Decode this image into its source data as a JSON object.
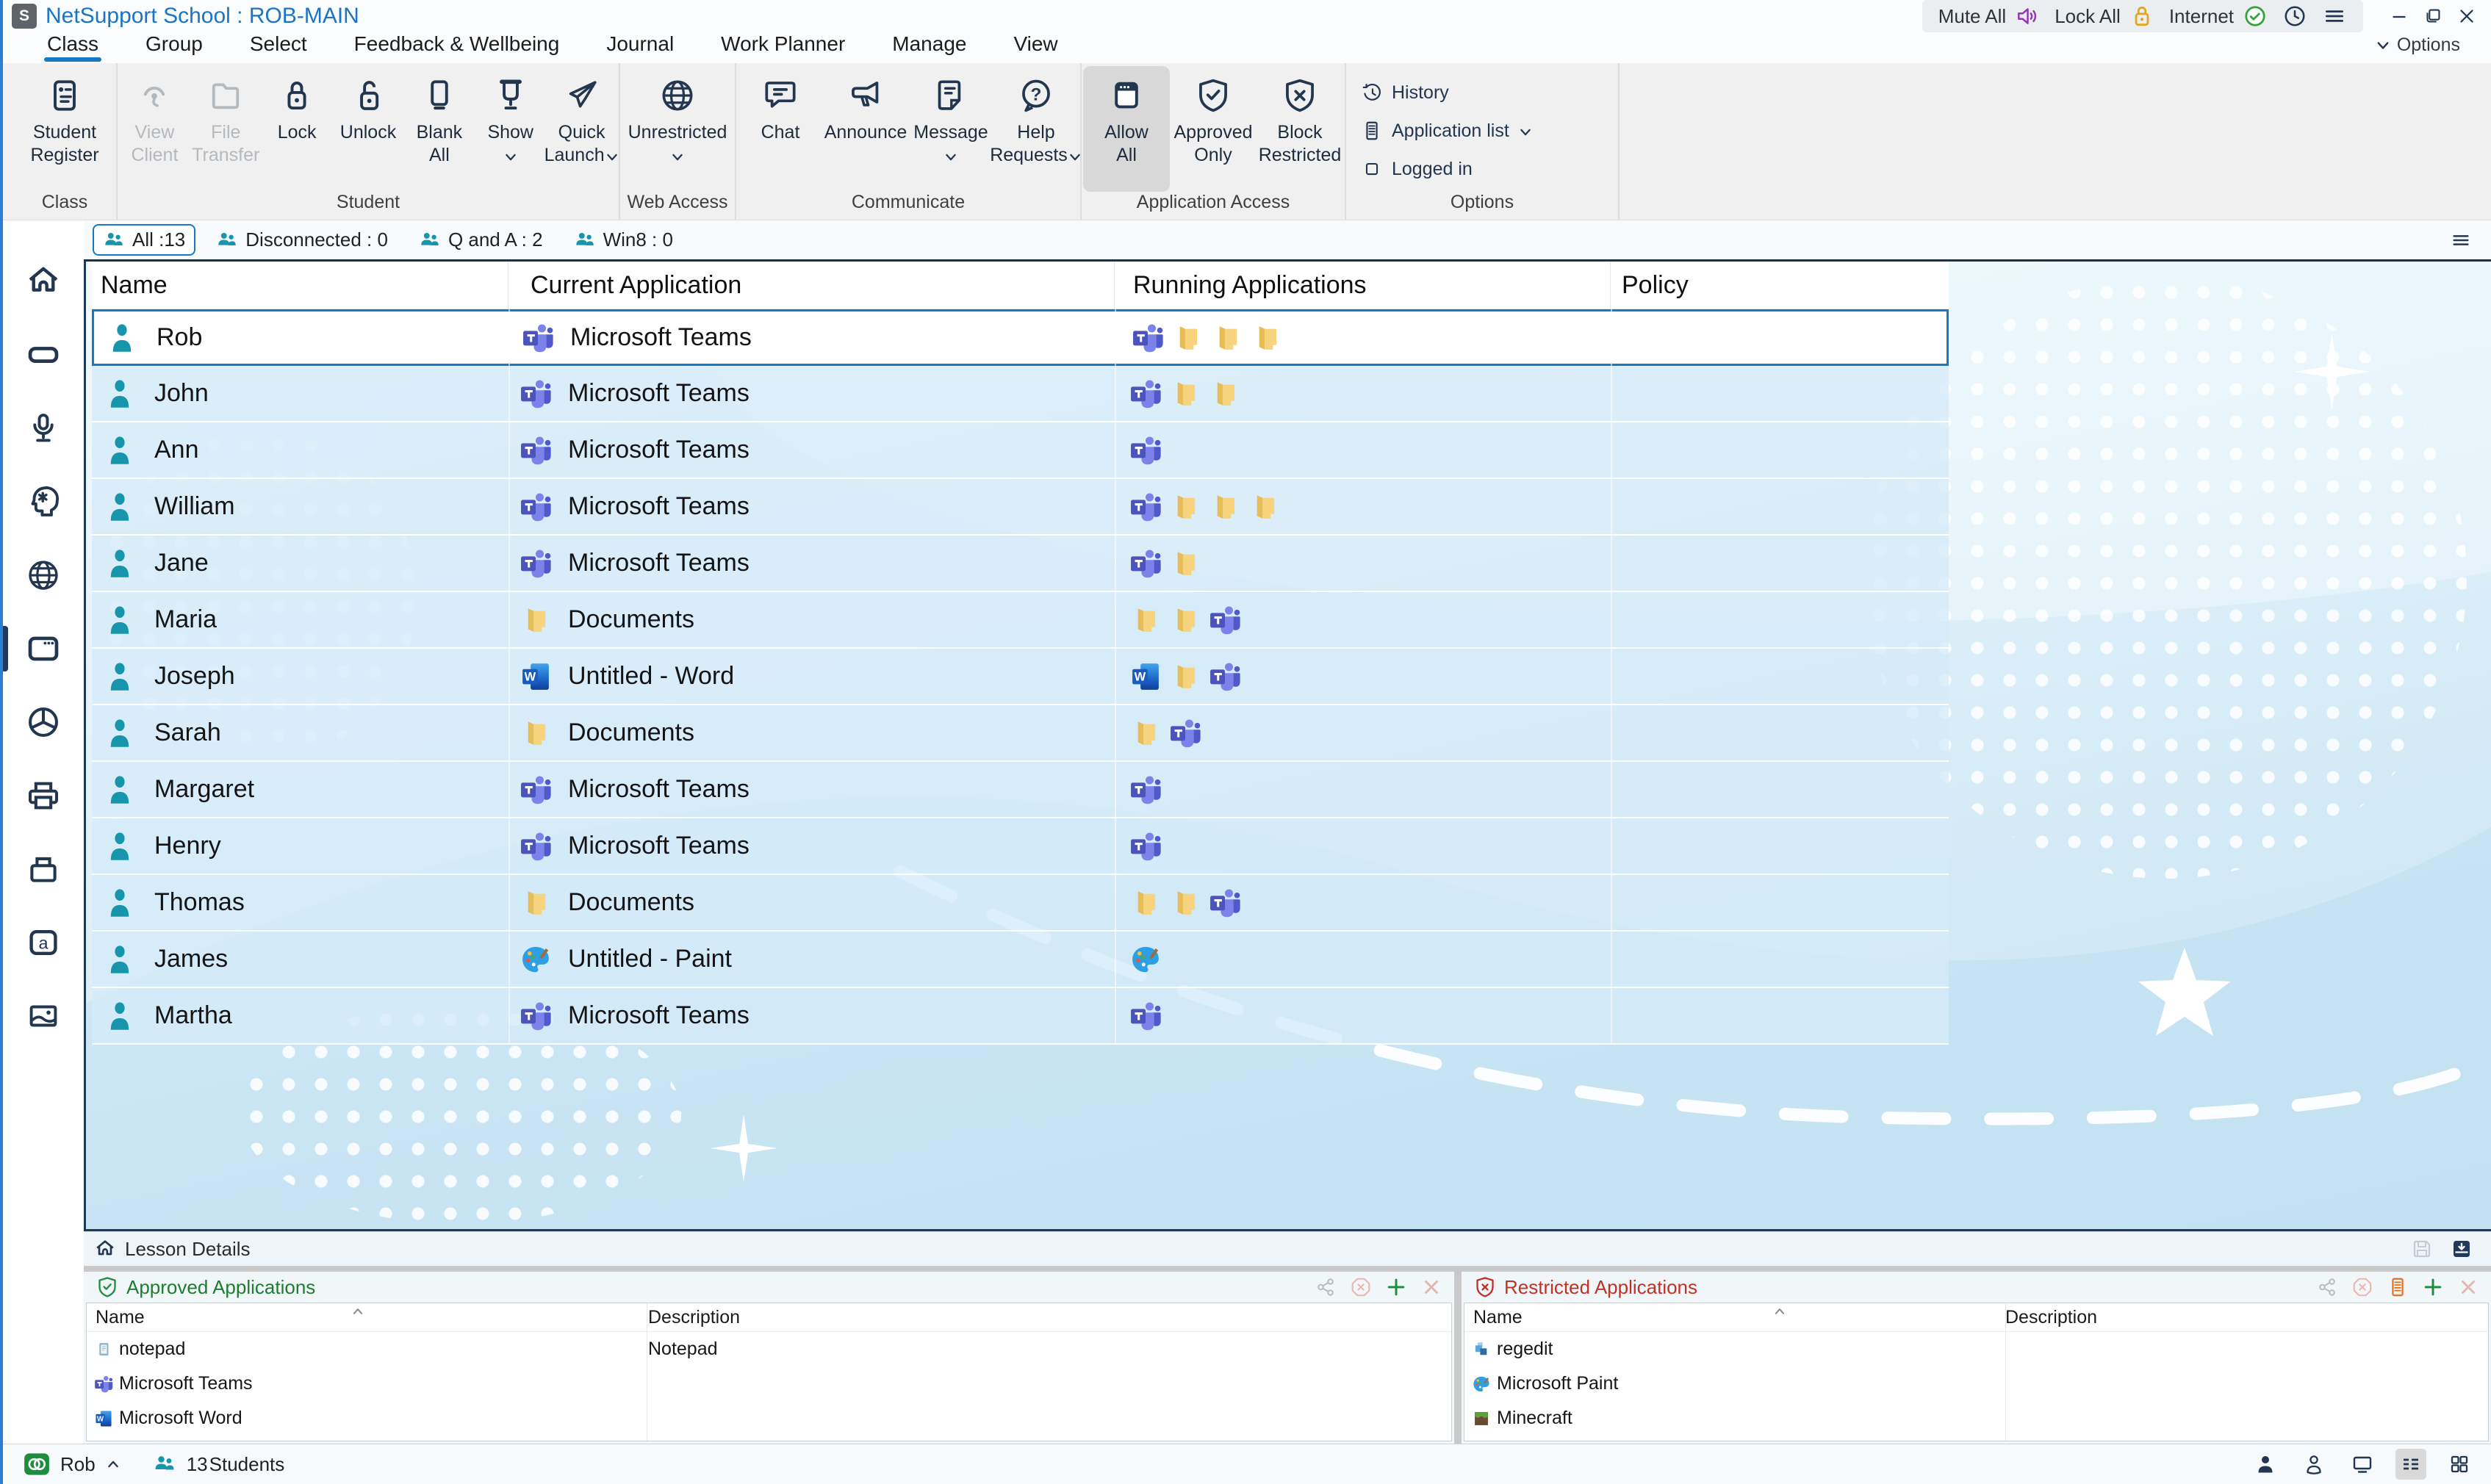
{
  "window": {
    "title": "NetSupport School : ROB-MAIN",
    "logo_letter": "S"
  },
  "titlebar": {
    "mute_all": "Mute All",
    "lock_all": "Lock All",
    "internet": "Internet"
  },
  "menu": {
    "tabs": [
      {
        "label": "Class",
        "active": true
      },
      {
        "label": "Group"
      },
      {
        "label": "Select"
      },
      {
        "label": "Feedback & Wellbeing"
      },
      {
        "label": "Journal"
      },
      {
        "label": "Work Planner"
      },
      {
        "label": "Manage"
      },
      {
        "label": "View"
      }
    ],
    "options_label": "Options"
  },
  "ribbon": {
    "groups": [
      {
        "key": "class",
        "label": "Class",
        "buttons": [
          {
            "lines": [
              "Student",
              "Register"
            ],
            "icon": "register"
          }
        ]
      },
      {
        "key": "student",
        "label": "Student",
        "buttons": [
          {
            "lines": [
              "View",
              "Client"
            ],
            "icon": "view-client",
            "disabled": true
          },
          {
            "lines": [
              "File",
              "Transfer"
            ],
            "icon": "file-transfer",
            "disabled": true
          },
          {
            "lines": [
              "Lock"
            ],
            "icon": "lock"
          },
          {
            "lines": [
              "Unlock"
            ],
            "icon": "unlock"
          },
          {
            "lines": [
              "Blank",
              "All"
            ],
            "icon": "blank"
          },
          {
            "lines": [
              "Show"
            ],
            "icon": "show",
            "dropdown": true
          },
          {
            "lines": [
              "Quick",
              "Launch"
            ],
            "icon": "quick-launch",
            "dropdown": true
          }
        ]
      },
      {
        "key": "web",
        "label": "Web Access",
        "buttons": [
          {
            "lines": [
              "Unrestricted"
            ],
            "icon": "globe",
            "dropdown": true
          }
        ]
      },
      {
        "key": "comm",
        "label": "Communicate",
        "buttons": [
          {
            "lines": [
              "Chat"
            ],
            "icon": "chat"
          },
          {
            "lines": [
              "Announce"
            ],
            "icon": "announce"
          },
          {
            "lines": [
              "Message"
            ],
            "icon": "message",
            "dropdown": true
          },
          {
            "lines": [
              "Help",
              "Requests"
            ],
            "icon": "help",
            "dropdown": true
          }
        ]
      },
      {
        "key": "app",
        "label": "Application Access",
        "buttons": [
          {
            "lines": [
              "Allow",
              "All"
            ],
            "icon": "allow-all",
            "active": true
          },
          {
            "lines": [
              "Approved",
              "Only"
            ],
            "icon": "shield-check"
          },
          {
            "lines": [
              "Block",
              "Restricted"
            ],
            "icon": "shield-x"
          }
        ]
      },
      {
        "key": "opt",
        "label": "Options",
        "stacked": [
          {
            "label": "History",
            "icon": "history"
          },
          {
            "label": "Application list",
            "icon": "app-list",
            "dropdown": true
          },
          {
            "label": "Logged in",
            "icon": "checkbox"
          }
        ]
      }
    ]
  },
  "sidebar": {
    "items": [
      {
        "icon": "home"
      },
      {
        "icon": "board"
      },
      {
        "icon": "mic"
      },
      {
        "icon": "mind"
      },
      {
        "icon": "globe"
      },
      {
        "icon": "apps",
        "active": true
      },
      {
        "icon": "pie"
      },
      {
        "icon": "printer"
      },
      {
        "icon": "drive"
      },
      {
        "icon": "a-box"
      },
      {
        "icon": "image"
      }
    ]
  },
  "group_tabs": [
    {
      "label": "All :13",
      "active": true
    },
    {
      "label": "Disconnected : 0"
    },
    {
      "label": "Q and A : 2"
    },
    {
      "label": "Win8 : 0"
    }
  ],
  "table": {
    "columns": [
      "Name",
      "Current Application",
      "Running Applications",
      "Policy"
    ],
    "rows": [
      {
        "name": "Rob",
        "app": "Microsoft Teams",
        "app_icon": "teams",
        "running": [
          "teams",
          "folder",
          "folder",
          "folder"
        ],
        "selected": true
      },
      {
        "name": "John",
        "app": "Microsoft Teams",
        "app_icon": "teams",
        "running": [
          "teams",
          "folder",
          "folder"
        ]
      },
      {
        "name": "Ann",
        "app": "Microsoft Teams",
        "app_icon": "teams",
        "running": [
          "teams"
        ]
      },
      {
        "name": "William",
        "app": "Microsoft Teams",
        "app_icon": "teams",
        "running": [
          "teams",
          "folder",
          "folder",
          "folder"
        ]
      },
      {
        "name": "Jane",
        "app": "Microsoft Teams",
        "app_icon": "teams",
        "running": [
          "teams",
          "folder"
        ]
      },
      {
        "name": "Maria",
        "app": "Documents",
        "app_icon": "folder",
        "running": [
          "folder",
          "folder",
          "teams"
        ]
      },
      {
        "name": "Joseph",
        "app": "Untitled - Word",
        "app_icon": "word",
        "running": [
          "word",
          "folder",
          "teams"
        ]
      },
      {
        "name": "Sarah",
        "app": "Documents",
        "app_icon": "folder",
        "running": [
          "folder",
          "teams"
        ]
      },
      {
        "name": "Margaret",
        "app": "Microsoft Teams",
        "app_icon": "teams",
        "running": [
          "teams"
        ]
      },
      {
        "name": "Henry",
        "app": "Microsoft Teams",
        "app_icon": "teams",
        "running": [
          "teams"
        ]
      },
      {
        "name": "Thomas",
        "app": "Documents",
        "app_icon": "folder",
        "running": [
          "folder",
          "folder",
          "teams"
        ]
      },
      {
        "name": "James",
        "app": "Untitled - Paint",
        "app_icon": "paint",
        "running": [
          "paint"
        ]
      },
      {
        "name": "Martha",
        "app": "Microsoft Teams",
        "app_icon": "teams",
        "running": [
          "teams"
        ]
      }
    ]
  },
  "lesson": {
    "label": "Lesson Details"
  },
  "approved": {
    "title": "Approved Applications",
    "columns": [
      "Name",
      "Description"
    ],
    "tools": [
      "share",
      "oct-x",
      "plus",
      "x"
    ],
    "rows": [
      {
        "icon": "notepad",
        "name": "notepad",
        "description": "Notepad"
      },
      {
        "icon": "teams",
        "name": "Microsoft Teams",
        "description": ""
      },
      {
        "icon": "word",
        "name": "Microsoft Word",
        "description": ""
      }
    ]
  },
  "restricted": {
    "title": "Restricted Applications",
    "columns": [
      "Name",
      "Description"
    ],
    "tools": [
      "share",
      "oct-x",
      "app-list",
      "plus",
      "x"
    ],
    "rows": [
      {
        "icon": "regedit",
        "name": "regedit",
        "description": ""
      },
      {
        "icon": "paint",
        "name": "Microsoft Paint",
        "description": ""
      },
      {
        "icon": "minecraft",
        "name": "Minecraft",
        "description": ""
      }
    ]
  },
  "statusbar": {
    "user": "Rob",
    "student_count": "13",
    "students_label": "Students",
    "view_icons": [
      {
        "icon": "person-filled"
      },
      {
        "icon": "person-outline"
      },
      {
        "icon": "monitor"
      },
      {
        "icon": "list-view",
        "active": true
      },
      {
        "icon": "grid-view"
      }
    ]
  },
  "colors": {
    "accent": "#1779c4",
    "navy": "#22364f",
    "teal": "#1796ab",
    "approved_green": "#1e7d32",
    "restricted_red": "#c03127"
  }
}
